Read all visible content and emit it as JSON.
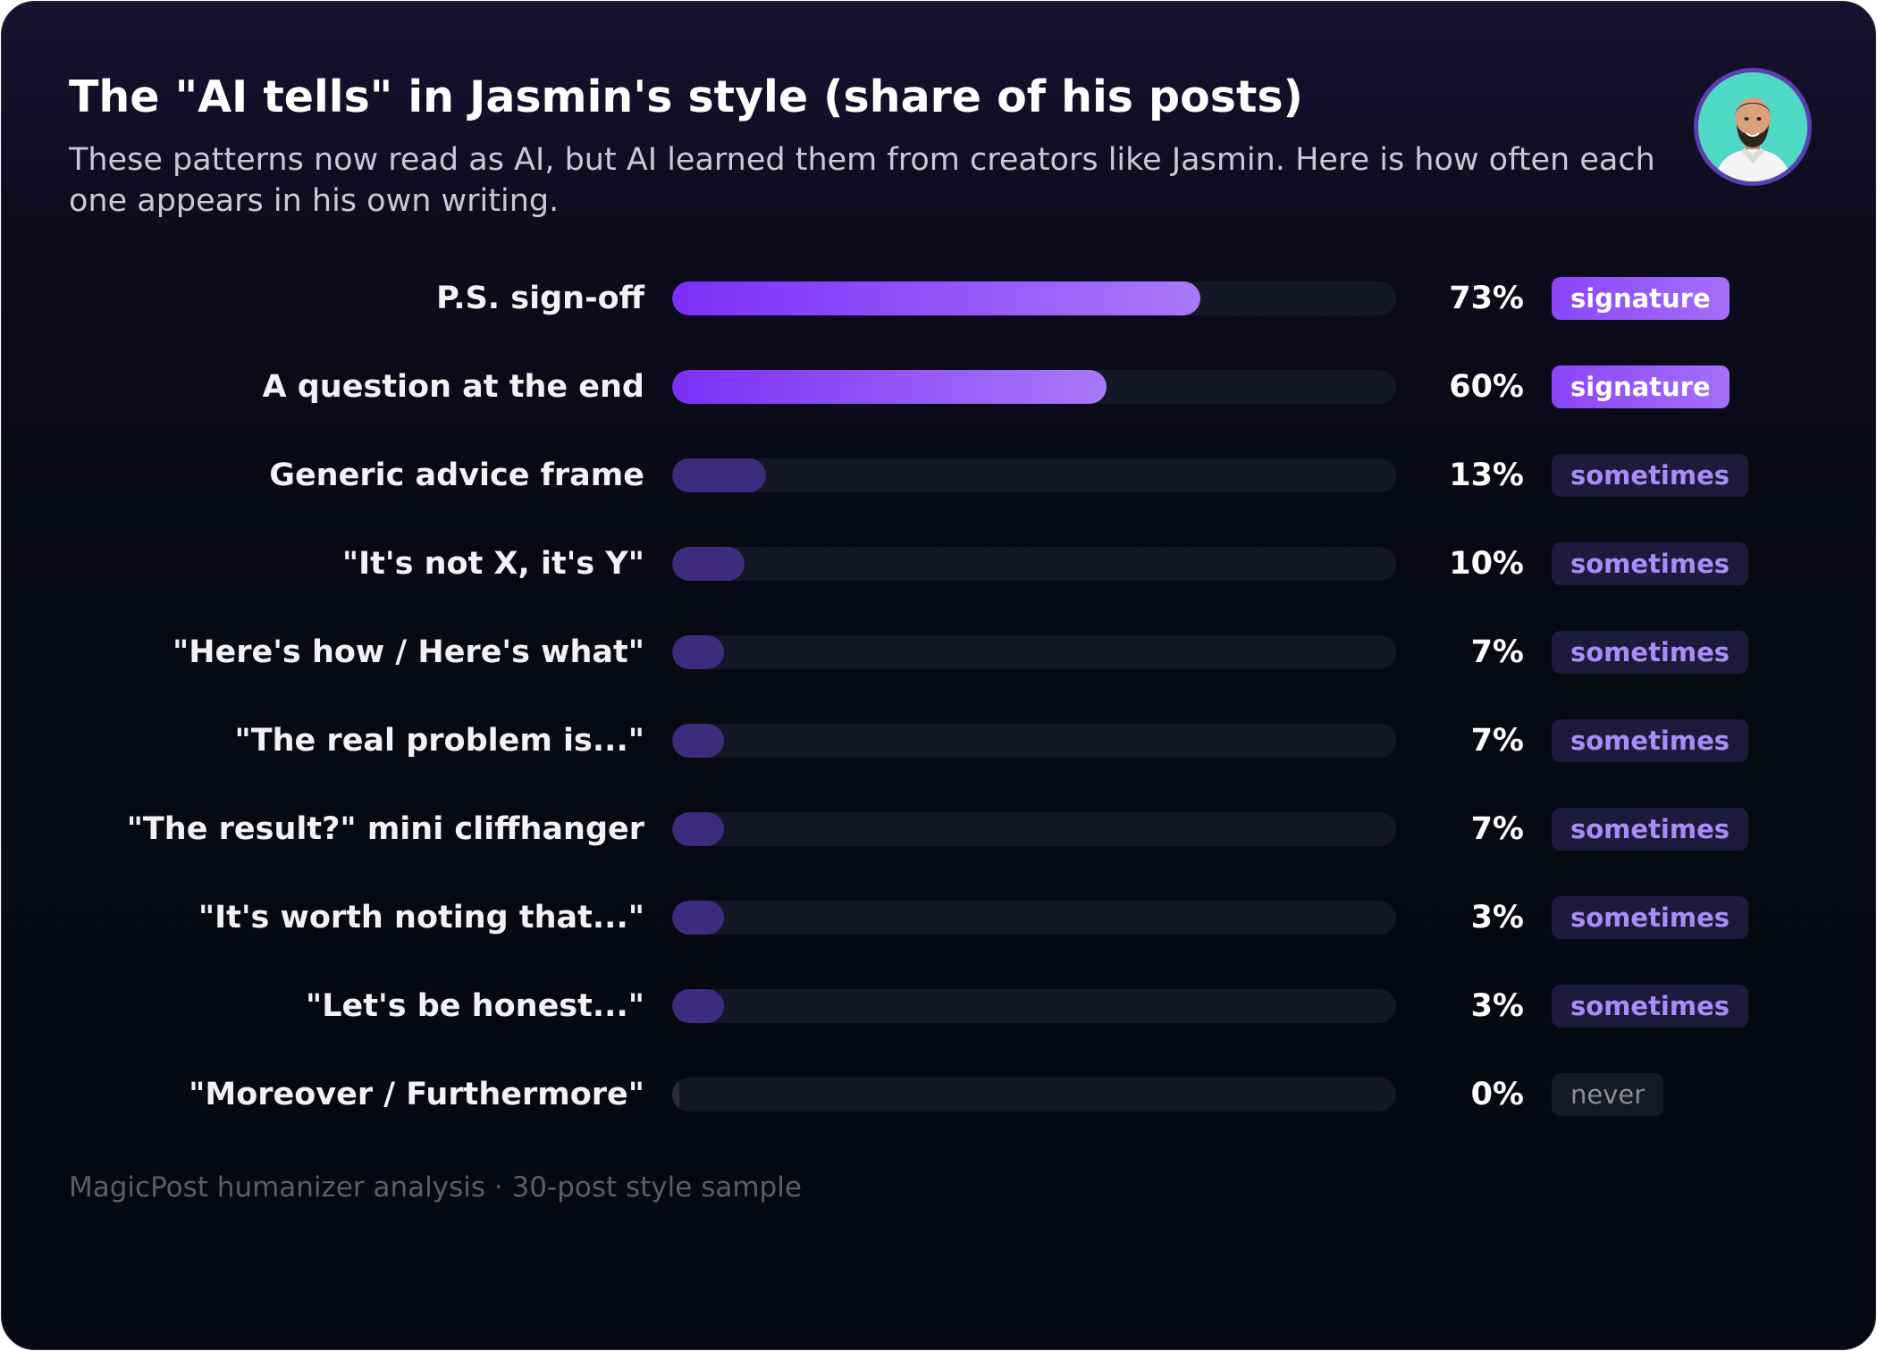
{
  "header": {
    "title": "The \"AI tells\" in Jasmin's style (share of his posts)",
    "subtitle": "These patterns now read as AI, but AI learned them from creators like Jasmin. Here is how often each one appears in his own writing."
  },
  "footer": {
    "source": "MagicPost humanizer analysis · 30-post style sample"
  },
  "colors": {
    "signature": "#8b45f8",
    "sometimes": "#3d2c7d",
    "never": "#2a2d3a",
    "background": "#070913"
  },
  "chart_data": {
    "type": "bar",
    "orientation": "horizontal",
    "title": "The \"AI tells\" in Jasmin's style (share of his posts)",
    "xlim": [
      0,
      100
    ],
    "grid": false,
    "categories": [
      "P.S. sign-off",
      "A question at the end",
      "Generic advice frame",
      "\"It's not X, it's Y\"",
      "\"Here's how / Here's what\"",
      "\"The real problem is...\"",
      "\"The result?\" mini cliffhanger",
      "\"It's worth noting that...\"",
      "\"Let's be honest...\"",
      "\"Moreover / Furthermore\""
    ],
    "values": [
      73,
      60,
      13,
      10,
      7,
      7,
      7,
      3,
      3,
      0
    ],
    "value_labels": [
      "73%",
      "60%",
      "13%",
      "10%",
      "7%",
      "7%",
      "7%",
      "3%",
      "3%",
      "0%"
    ],
    "tiers": [
      "signature",
      "signature",
      "sometimes",
      "sometimes",
      "sometimes",
      "sometimes",
      "sometimes",
      "sometimes",
      "sometimes",
      "never"
    ]
  }
}
